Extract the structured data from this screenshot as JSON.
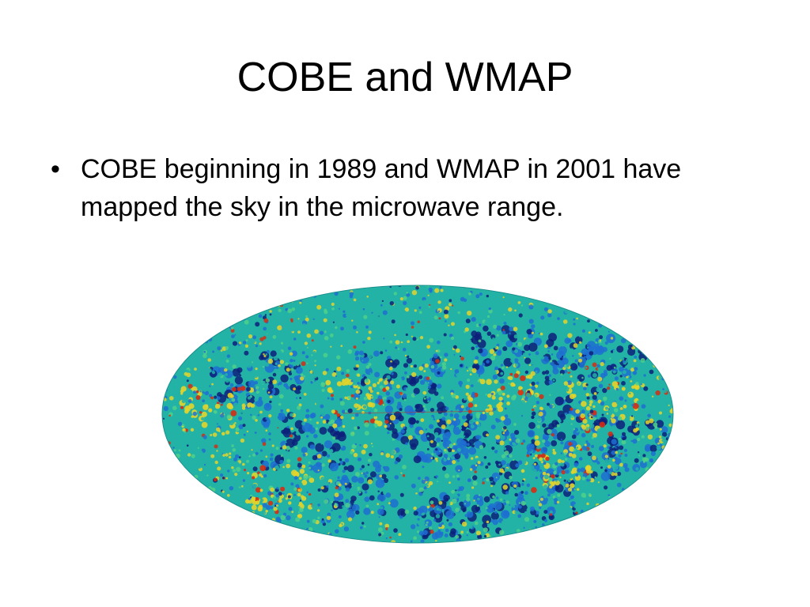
{
  "slide": {
    "title": "COBE and WMAP",
    "bullets": [
      {
        "marker": "•",
        "text": "COBE beginning in 1989 and WMAP in 2001 have mapped the sky in the microwave range."
      }
    ]
  },
  "image": {
    "subject": "all-sky microwave map (Mollweide projection)",
    "colors": {
      "cold": "#0d1f7a",
      "cool": "#1f6fd1",
      "mid": "#22b3a6",
      "warm": "#e3d42a",
      "hot": "#d62b12"
    }
  }
}
